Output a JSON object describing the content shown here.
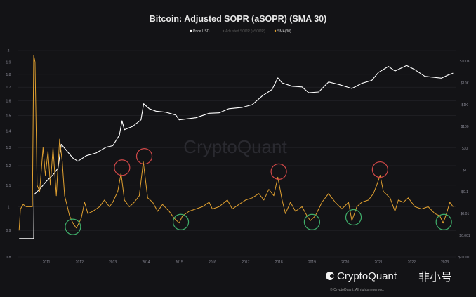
{
  "chart_data": {
    "type": "line",
    "title": "Bitcoin: Adjusted SOPR (aSOPR) (SMA 30)",
    "legend": {
      "placement": "top-center",
      "items": [
        {
          "label": "Price USD",
          "color": "#ffffff",
          "visible": true
        },
        {
          "label": "Adjusted SOPR (aSOPR)",
          "color": "#777777",
          "visible": false
        },
        {
          "label": "SMA(30)",
          "color": "#e0a030",
          "visible": true
        }
      ]
    },
    "x_ticks": [
      "2011",
      "2012",
      "2013",
      "2014",
      "2015",
      "2016",
      "2017",
      "2018",
      "2019",
      "2020",
      "2021",
      "2022",
      "2023"
    ],
    "xlim": [
      2010.18,
      2023.3
    ],
    "left_axis": {
      "scale": "log",
      "range": [
        0.8,
        2
      ],
      "ticks": [
        "2",
        "1.9",
        "1.8",
        "1.7",
        "1.6",
        "1.5",
        "1.4",
        "1.3",
        "1.2",
        "1.1",
        "1",
        "0.9",
        "0.8"
      ]
    },
    "right_axis": {
      "scale": "log",
      "range": [
        0.0001,
        100000
      ],
      "ticks": [
        "$100K",
        "$10K",
        "$1K",
        "$100",
        "$10",
        "$1",
        "$0.1",
        "$0.01",
        "$0.001",
        "$0.0001"
      ]
    },
    "grid": true,
    "series": [
      {
        "name": "Price USD",
        "axis": "right",
        "color": "#ffffff",
        "points": [
          [
            2010.18,
            0.0007
          ],
          [
            2010.62,
            0.0007
          ],
          [
            2010.63,
            0.074
          ],
          [
            2010.8,
            0.13
          ],
          [
            2011.0,
            0.3
          ],
          [
            2011.2,
            0.6
          ],
          [
            2011.35,
            1.2
          ],
          [
            2011.45,
            15
          ],
          [
            2011.6,
            8
          ],
          [
            2011.8,
            3.5
          ],
          [
            2011.95,
            2.5
          ],
          [
            2012.2,
            4.5
          ],
          [
            2012.5,
            6
          ],
          [
            2012.8,
            11
          ],
          [
            2013.0,
            13
          ],
          [
            2013.2,
            40
          ],
          [
            2013.28,
            180
          ],
          [
            2013.35,
            70
          ],
          [
            2013.6,
            100
          ],
          [
            2013.85,
            200
          ],
          [
            2013.93,
            1100
          ],
          [
            2014.1,
            650
          ],
          [
            2014.3,
            500
          ],
          [
            2014.6,
            450
          ],
          [
            2014.9,
            330
          ],
          [
            2015.0,
            200
          ],
          [
            2015.5,
            250
          ],
          [
            2015.9,
            400
          ],
          [
            2016.2,
            420
          ],
          [
            2016.5,
            650
          ],
          [
            2016.9,
            750
          ],
          [
            2017.2,
            1000
          ],
          [
            2017.5,
            2500
          ],
          [
            2017.8,
            5000
          ],
          [
            2017.97,
            17000
          ],
          [
            2018.1,
            10000
          ],
          [
            2018.4,
            7000
          ],
          [
            2018.7,
            6500
          ],
          [
            2018.9,
            3500
          ],
          [
            2019.2,
            3800
          ],
          [
            2019.5,
            11000
          ],
          [
            2019.8,
            8500
          ],
          [
            2020.2,
            5500
          ],
          [
            2020.5,
            9500
          ],
          [
            2020.8,
            13000
          ],
          [
            2021.0,
            30000
          ],
          [
            2021.3,
            57000
          ],
          [
            2021.5,
            35000
          ],
          [
            2021.85,
            63000
          ],
          [
            2022.1,
            40000
          ],
          [
            2022.4,
            20000
          ],
          [
            2022.9,
            16500
          ],
          [
            2023.1,
            23000
          ],
          [
            2023.25,
            28000
          ]
        ]
      },
      {
        "name": "SMA(30)",
        "axis": "left",
        "color": "#e0a030",
        "points": [
          [
            2010.18,
            0.9
          ],
          [
            2010.22,
            0.99
          ],
          [
            2010.3,
            1.01
          ],
          [
            2010.4,
            1.0
          ],
          [
            2010.58,
            1.0
          ],
          [
            2010.62,
            1.96
          ],
          [
            2010.66,
            1.9
          ],
          [
            2010.72,
            1.1
          ],
          [
            2010.8,
            1.07
          ],
          [
            2010.9,
            1.3
          ],
          [
            2010.97,
            1.15
          ],
          [
            2011.05,
            1.28
          ],
          [
            2011.12,
            1.1
          ],
          [
            2011.2,
            1.3
          ],
          [
            2011.3,
            1.05
          ],
          [
            2011.4,
            1.35
          ],
          [
            2011.48,
            1.22
          ],
          [
            2011.55,
            1.05
          ],
          [
            2011.6,
            1.02
          ],
          [
            2011.7,
            0.96
          ],
          [
            2011.8,
            0.93
          ],
          [
            2011.9,
            0.91
          ],
          [
            2011.98,
            0.93
          ],
          [
            2012.05,
            0.95
          ],
          [
            2012.15,
            1.02
          ],
          [
            2012.25,
            0.97
          ],
          [
            2012.4,
            0.98
          ],
          [
            2012.6,
            1.0
          ],
          [
            2012.75,
            1.03
          ],
          [
            2012.9,
            1.0
          ],
          [
            2013.0,
            1.02
          ],
          [
            2013.15,
            1.07
          ],
          [
            2013.25,
            1.16
          ],
          [
            2013.35,
            1.03
          ],
          [
            2013.5,
            1.0
          ],
          [
            2013.65,
            1.02
          ],
          [
            2013.8,
            1.05
          ],
          [
            2013.92,
            1.22
          ],
          [
            2014.05,
            1.04
          ],
          [
            2014.2,
            1.02
          ],
          [
            2014.35,
            0.98
          ],
          [
            2014.5,
            1.01
          ],
          [
            2014.7,
            0.98
          ],
          [
            2014.85,
            0.95
          ],
          [
            2015.0,
            0.93
          ],
          [
            2015.1,
            0.96
          ],
          [
            2015.3,
            0.98
          ],
          [
            2015.5,
            0.99
          ],
          [
            2015.7,
            1.0
          ],
          [
            2015.9,
            1.02
          ],
          [
            2016.0,
            0.99
          ],
          [
            2016.2,
            1.0
          ],
          [
            2016.45,
            1.03
          ],
          [
            2016.6,
            0.99
          ],
          [
            2016.8,
            1.01
          ],
          [
            2017.0,
            1.03
          ],
          [
            2017.2,
            1.04
          ],
          [
            2017.4,
            1.06
          ],
          [
            2017.55,
            1.03
          ],
          [
            2017.7,
            1.08
          ],
          [
            2017.85,
            1.05
          ],
          [
            2017.97,
            1.14
          ],
          [
            2018.1,
            1.03
          ],
          [
            2018.2,
            0.97
          ],
          [
            2018.35,
            1.02
          ],
          [
            2018.5,
            0.98
          ],
          [
            2018.7,
            1.0
          ],
          [
            2018.85,
            0.96
          ],
          [
            2018.95,
            0.94
          ],
          [
            2019.1,
            0.96
          ],
          [
            2019.3,
            1.02
          ],
          [
            2019.5,
            1.06
          ],
          [
            2019.7,
            1.02
          ],
          [
            2019.9,
            0.99
          ],
          [
            2020.1,
            1.02
          ],
          [
            2020.2,
            0.94
          ],
          [
            2020.35,
            1.0
          ],
          [
            2020.5,
            1.02
          ],
          [
            2020.7,
            1.03
          ],
          [
            2020.85,
            1.06
          ],
          [
            2020.95,
            1.1
          ],
          [
            2021.05,
            1.15
          ],
          [
            2021.15,
            1.07
          ],
          [
            2021.35,
            1.04
          ],
          [
            2021.5,
            0.98
          ],
          [
            2021.6,
            1.03
          ],
          [
            2021.75,
            1.02
          ],
          [
            2021.9,
            1.04
          ],
          [
            2022.1,
            1.0
          ],
          [
            2022.3,
            0.99
          ],
          [
            2022.5,
            1.0
          ],
          [
            2022.7,
            0.97
          ],
          [
            2022.85,
            0.96
          ],
          [
            2022.95,
            0.93
          ],
          [
            2023.05,
            0.97
          ],
          [
            2023.15,
            1.02
          ],
          [
            2023.25,
            1.0
          ]
        ]
      }
    ],
    "annotations": {
      "red_circles_tops": [
        [
          2013.28,
          1.16
        ],
        [
          2013.95,
          1.22
        ],
        [
          2018.0,
          1.14
        ],
        [
          2021.05,
          1.15
        ]
      ],
      "green_circles_bottoms": [
        [
          2011.8,
          0.92
        ],
        [
          2015.05,
          0.94
        ],
        [
          2019.0,
          0.94
        ],
        [
          2020.25,
          0.96
        ],
        [
          2022.97,
          0.94
        ]
      ],
      "colors": {
        "top": "#d04848",
        "bottom": "#3fae6a"
      }
    },
    "watermark": "CryptoQuant",
    "footer": {
      "logo": "CryptoQuant",
      "copyright": "© CryptoQuant. All rights reserved.",
      "overlay": "非小号"
    }
  }
}
